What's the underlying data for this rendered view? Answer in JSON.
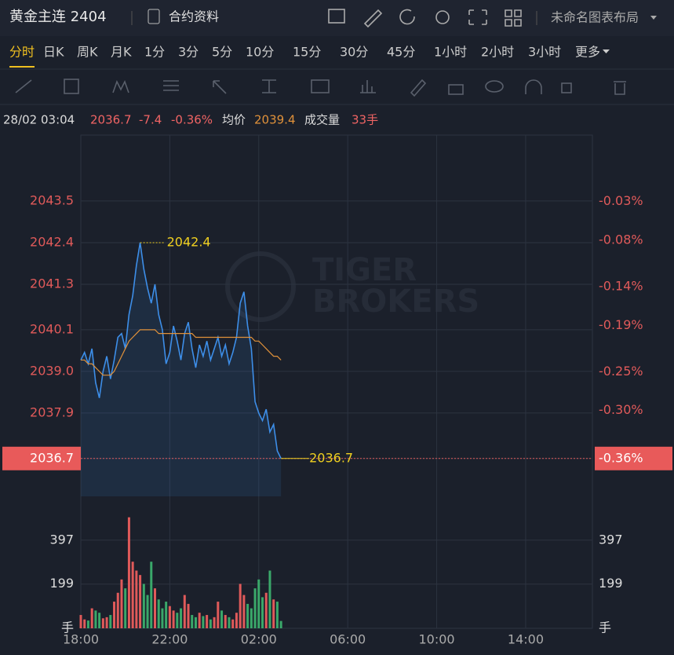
{
  "header": {
    "title": "黄金主连 2404",
    "contract_info": "合约资料",
    "layout_name": "未命名图表布局"
  },
  "timeframes": [
    "分时",
    "日K",
    "周K",
    "月K",
    "1分",
    "3分",
    "5分",
    "10分",
    "15分",
    "30分",
    "45分",
    "1小时",
    "2小时",
    "3小时",
    "更多"
  ],
  "info_bar": {
    "time": "28/02 03:04",
    "change": "-7.4",
    "change_pct": "-0.36%",
    "avg_label": "均价",
    "avg_value": "2039.4",
    "volume_label": "成交量",
    "volume_value": "33手"
  },
  "watermark": [
    "TIGER",
    "BROKERS"
  ],
  "chart_data": {
    "type": "line",
    "x": [
      "18:00",
      "18:10",
      "18:20",
      "18:30",
      "18:40",
      "18:50",
      "19:00",
      "19:10",
      "19:20",
      "19:30",
      "19:40",
      "19:50",
      "20:00",
      "20:10",
      "20:20",
      "20:30",
      "20:40",
      "20:50",
      "21:00",
      "21:10",
      "21:20",
      "21:30",
      "21:40",
      "21:50",
      "22:00",
      "22:10",
      "22:20",
      "22:30",
      "22:40",
      "22:50",
      "23:00",
      "23:10",
      "23:20",
      "23:30",
      "23:40",
      "23:50",
      "00:00",
      "00:10",
      "00:20",
      "00:30",
      "00:40",
      "00:50",
      "01:00",
      "01:10",
      "01:20",
      "01:30",
      "01:40",
      "01:50",
      "02:00",
      "02:10",
      "02:20",
      "02:30",
      "02:40",
      "02:50",
      "03:00"
    ],
    "xlim": [
      "18:00",
      "17:00"
    ],
    "xticks": [
      "18:00",
      "22:00",
      "02:00",
      "06:00",
      "10:00",
      "14:00"
    ],
    "series": [
      {
        "color": "#3d8ee8",
        "values": [
          2039.3,
          2039.5,
          2039.2,
          2039.6,
          2038.7,
          2038.3,
          2039.0,
          2039.4,
          2038.8,
          2039.3,
          2039.9,
          2040.0,
          2039.6,
          2040.5,
          2041.0,
          2041.8,
          2042.4,
          2041.7,
          2041.2,
          2040.8,
          2041.3,
          2040.5,
          2040.1,
          2039.2,
          2039.5,
          2040.2,
          2039.8,
          2039.3,
          2040.0,
          2040.3,
          2039.6,
          2039.1,
          2039.7,
          2039.4,
          2039.8,
          2039.3,
          2039.6,
          2039.9,
          2039.4,
          2039.7,
          2039.2,
          2039.5,
          2039.9,
          2040.8,
          2041.1,
          2040.2,
          2039.6,
          2038.2,
          2037.9,
          2037.7,
          2038.0,
          2037.4,
          2037.6,
          2036.9,
          2036.7
        ]
      },
      {
        "color": "#e0913a",
        "values": [
          2039.3,
          2039.3,
          2039.2,
          2039.2,
          2039.1,
          2039.0,
          2038.9,
          2038.9,
          2038.9,
          2039.0,
          2039.2,
          2039.4,
          2039.6,
          2039.8,
          2039.9,
          2040.0,
          2040.1,
          2040.1,
          2040.1,
          2040.1,
          2040.1,
          2040.0,
          2040.0,
          2040.0,
          2040.0,
          2040.0,
          2040.0,
          2040.0,
          2040.0,
          2040.0,
          2040.0,
          2039.9,
          2039.9,
          2039.9,
          2039.9,
          2039.9,
          2039.9,
          2039.9,
          2039.9,
          2039.9,
          2039.9,
          2039.9,
          2039.9,
          2039.9,
          2039.9,
          2039.9,
          2039.9,
          2039.8,
          2039.8,
          2039.7,
          2039.6,
          2039.5,
          2039.4,
          2039.4,
          2039.3
        ]
      }
    ],
    "ylim": [
      2035.7,
      2045.24
    ],
    "yticks": [
      {
        "value": 2036.7,
        "label": "2036.7"
      },
      2037.9,
      {
        "value": 2039.0,
        "label": "2039.0"
      },
      2040.1,
      2041.3,
      2042.4,
      2043.5
    ],
    "y2lim": [
      -0.411,
      0.056
    ],
    "y2ticks": [
      {
        "value": -0.36,
        "label": "-0.36%"
      },
      {
        "value": -0.3,
        "label": "-0.30%"
      },
      {
        "value": -0.25,
        "label": "-0.25%"
      },
      {
        "value": -0.19,
        "label": "-0.19%"
      },
      {
        "value": -0.14,
        "label": "-0.14%"
      },
      {
        "value": -0.08,
        "label": "-0.08%"
      },
      {
        "value": -0.03,
        "label": "-0.03%"
      }
    ],
    "volume": {
      "values": [
        60,
        40,
        35,
        90,
        80,
        70,
        45,
        50,
        60,
        120,
        160,
        220,
        180,
        500,
        300,
        260,
        240,
        200,
        150,
        300,
        180,
        130,
        90,
        120,
        100,
        80,
        70,
        90,
        150,
        110,
        60,
        50,
        70,
        55,
        60,
        40,
        50,
        120,
        80,
        60,
        50,
        40,
        70,
        200,
        150,
        110,
        90,
        180,
        220,
        140,
        160,
        260,
        130,
        120,
        33
      ],
      "up_color": "#e05a5a",
      "down_color": "#3aa86a",
      "ylim": [
        0,
        566
      ],
      "yticks": [
        {
          "value": 0,
          "label": "手"
        },
        199,
        397
      ]
    }
  }
}
